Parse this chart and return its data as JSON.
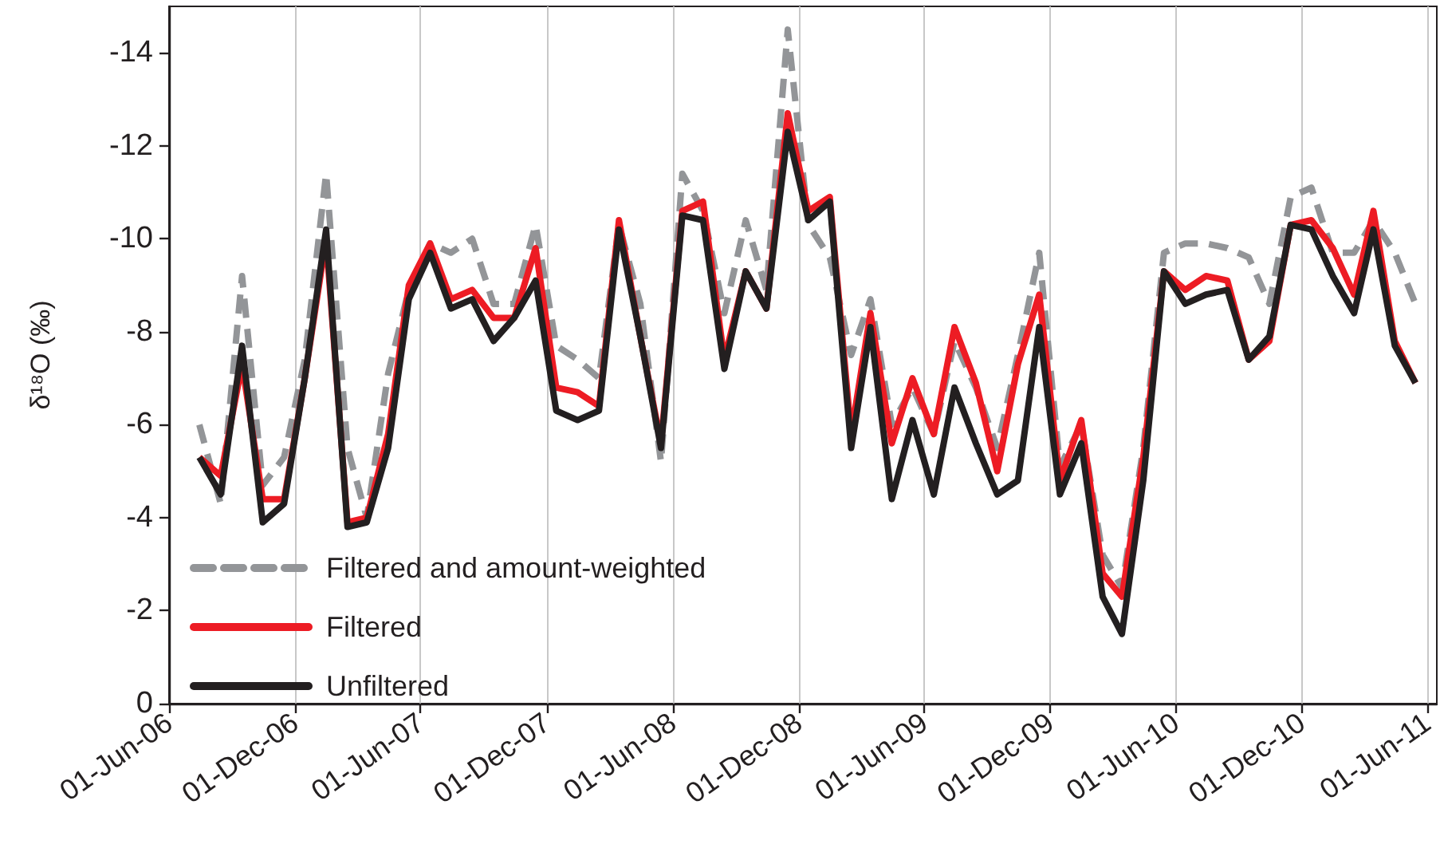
{
  "chart_data": {
    "type": "line",
    "ylabel": "δ¹⁸O (‰)",
    "x": [
      "2006-07-15",
      "2006-08-15",
      "2006-09-15",
      "2006-10-15",
      "2006-11-15",
      "2006-12-15",
      "2007-01-15",
      "2007-02-15",
      "2007-03-15",
      "2007-04-15",
      "2007-05-15",
      "2007-06-15",
      "2007-07-15",
      "2007-08-15",
      "2007-09-15",
      "2007-10-15",
      "2007-11-15",
      "2007-12-15",
      "2008-01-15",
      "2008-02-15",
      "2008-03-15",
      "2008-04-15",
      "2008-05-15",
      "2008-06-15",
      "2008-07-15",
      "2008-08-15",
      "2008-09-15",
      "2008-10-15",
      "2008-11-15",
      "2008-12-15",
      "2009-01-15",
      "2009-02-15",
      "2009-03-15",
      "2009-04-15",
      "2009-05-15",
      "2009-06-15",
      "2009-07-15",
      "2009-08-15",
      "2009-09-15",
      "2009-10-15",
      "2009-11-15",
      "2009-12-15",
      "2010-01-15",
      "2010-02-15",
      "2010-03-15",
      "2010-04-15",
      "2010-05-15",
      "2010-06-15",
      "2010-07-15",
      "2010-08-15",
      "2010-09-15",
      "2010-10-15",
      "2010-11-15",
      "2010-12-15",
      "2011-01-15",
      "2011-02-15",
      "2011-03-15",
      "2011-04-15",
      "2011-05-15"
    ],
    "series": [
      {
        "name": "Filtered and amount-weighted",
        "color": "#939598",
        "line_style": "dashed",
        "values": [
          -6.0,
          -4.3,
          -9.2,
          -4.7,
          -5.3,
          -7.4,
          -11.4,
          -5.5,
          -4.0,
          -7.1,
          -8.9,
          -9.9,
          -9.7,
          -10.0,
          -8.6,
          -8.6,
          -10.3,
          -7.7,
          -7.4,
          -7.0,
          -10.3,
          -8.6,
          -5.2,
          -11.4,
          -10.6,
          -8.4,
          -10.4,
          -8.9,
          -14.5,
          -10.3,
          -9.6,
          -7.5,
          -8.7,
          -6.0,
          -6.8,
          -5.8,
          -7.8,
          -6.8,
          -5.5,
          -7.5,
          -9.7,
          -5.1,
          -6.0,
          -3.2,
          -2.5,
          -5.5,
          -9.7,
          -9.9,
          -9.9,
          -9.8,
          -9.6,
          -8.6,
          -10.9,
          -11.1,
          -9.7,
          -9.7,
          -10.4,
          -9.7,
          -8.6
        ]
      },
      {
        "name": "Filtered",
        "color": "#ed1c24",
        "line_style": "solid",
        "values": [
          -5.3,
          -4.9,
          -7.3,
          -4.4,
          -4.4,
          -7.0,
          -10.0,
          -3.9,
          -4.0,
          -5.8,
          -9.0,
          -9.9,
          -8.7,
          -8.9,
          -8.3,
          -8.3,
          -9.8,
          -6.8,
          -6.7,
          -6.4,
          -10.4,
          -7.9,
          -5.6,
          -10.6,
          -10.8,
          -7.4,
          -9.3,
          -8.5,
          -12.7,
          -10.6,
          -10.9,
          -5.8,
          -8.4,
          -5.6,
          -7.0,
          -5.8,
          -8.1,
          -6.9,
          -5.0,
          -7.3,
          -8.8,
          -4.8,
          -6.1,
          -2.8,
          -2.3,
          -5.3,
          -9.3,
          -8.9,
          -9.2,
          -9.1,
          -7.4,
          -7.8,
          -10.3,
          -10.4,
          -9.8,
          -8.8,
          -10.6,
          -7.8,
          -6.9
        ]
      },
      {
        "name": "Unfiltered",
        "color": "#231f20",
        "line_style": "solid",
        "values": [
          -5.3,
          -4.5,
          -7.7,
          -3.9,
          -4.3,
          -7.0,
          -10.2,
          -3.8,
          -3.9,
          -5.5,
          -8.7,
          -9.7,
          -8.5,
          -8.7,
          -7.8,
          -8.3,
          -9.1,
          -6.3,
          -6.1,
          -6.3,
          -10.2,
          -7.9,
          -5.5,
          -10.5,
          -10.4,
          -7.2,
          -9.3,
          -8.5,
          -12.3,
          -10.4,
          -10.8,
          -5.5,
          -8.1,
          -4.4,
          -6.1,
          -4.5,
          -6.8,
          -5.6,
          -4.5,
          -4.8,
          -8.1,
          -4.5,
          -5.6,
          -2.3,
          -1.5,
          -4.8,
          -9.3,
          -8.6,
          -8.8,
          -8.9,
          -7.4,
          -7.9,
          -10.3,
          -10.2,
          -9.2,
          -8.4,
          -10.2,
          -7.7,
          -6.9
        ]
      }
    ],
    "xlim": [
      "2006-06-01",
      "2011-06-15"
    ],
    "xticks": [
      {
        "value": "2006-06-01",
        "label": "01-Jun-06"
      },
      {
        "value": "2006-12-01",
        "label": "01-Dec-06"
      },
      {
        "value": "2007-06-01",
        "label": "01-Jun-07"
      },
      {
        "value": "2007-12-01",
        "label": "01-Dec-07"
      },
      {
        "value": "2008-06-01",
        "label": "01-Jun-08"
      },
      {
        "value": "2008-12-01",
        "label": "01-Dec-08"
      },
      {
        "value": "2009-06-01",
        "label": "01-Jun-09"
      },
      {
        "value": "2009-12-01",
        "label": "01-Dec-09"
      },
      {
        "value": "2010-06-01",
        "label": "01-Jun-10"
      },
      {
        "value": "2010-12-01",
        "label": "01-Dec-10"
      },
      {
        "value": "2011-06-01",
        "label": "01-Jun-11"
      }
    ],
    "ylim": [
      0,
      -15
    ],
    "yticks": [
      0,
      -2,
      -4,
      -6,
      -8,
      -10,
      -12,
      -14
    ],
    "grid": "x",
    "legend": "bottom left",
    "marker": "none"
  }
}
